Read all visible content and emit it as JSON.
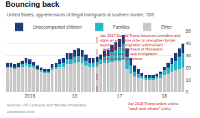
{
  "chart_data": {
    "type": "bar",
    "stacked": true,
    "title": "Bouncing back",
    "subtitle": "United States, apprehensions of illegal immigrants at southern border, ’000",
    "source": "Source: US Customs and Border Protection",
    "watermark": "economist.com",
    "categories": [
      null,
      null,
      null,
      null,
      null,
      null,
      "2015",
      null,
      null,
      null,
      null,
      null,
      null,
      null,
      null,
      null,
      null,
      null,
      "16",
      null,
      null,
      null,
      null,
      null,
      null,
      null,
      null,
      null,
      null,
      null,
      "17",
      null,
      null,
      null,
      null,
      null,
      null,
      null,
      null,
      null,
      null,
      null,
      "18",
      null,
      null,
      null,
      null,
      null
    ],
    "series": [
      {
        "name": "Other",
        "color": "#c8c8c8",
        "values": [
          20,
          20,
          19,
          20,
          21,
          22,
          21,
          20,
          18,
          17,
          16,
          16,
          18,
          19,
          21,
          21,
          23,
          23,
          24,
          25,
          24,
          22,
          21,
          21,
          22,
          23,
          24,
          24,
          25,
          26,
          26,
          27,
          19,
          15,
          13,
          12,
          11,
          10,
          10,
          10,
          11,
          12,
          14,
          15,
          17,
          18,
          19,
          20
        ]
      },
      {
        "name": "Families",
        "color": "#29b6c8",
        "values": [
          1,
          1,
          1,
          1,
          2,
          2,
          2,
          2,
          1,
          1,
          1,
          1,
          2,
          2,
          2,
          3,
          4,
          4,
          5,
          5,
          5,
          4,
          3,
          3,
          3,
          4,
          5,
          6,
          8,
          9,
          11,
          13,
          10,
          7,
          4,
          3,
          2,
          2,
          2,
          2,
          2,
          3,
          4,
          5,
          6,
          8,
          10,
          12
        ]
      },
      {
        "name": "Unaccompanied children",
        "color": "#1f3d7a",
        "values": [
          3,
          3,
          3,
          3,
          3,
          4,
          4,
          3,
          3,
          2,
          2,
          2,
          3,
          3,
          4,
          4,
          5,
          5,
          6,
          6,
          6,
          5,
          4,
          4,
          4,
          4,
          5,
          5,
          6,
          6,
          7,
          7,
          7,
          6,
          5,
          4,
          3,
          2,
          2,
          2,
          2,
          2,
          3,
          4,
          5,
          6,
          7,
          8
        ]
      }
    ],
    "ylim": [
      0,
      50
    ],
    "yticks": [
      0,
      10,
      20,
      30,
      40,
      50
    ],
    "grid": true,
    "legend": "top",
    "annotations": [
      {
        "text": "Jan 2017 Donald Trump becomes president and\nsigns an executive order to strengthen border\nsecurity and immigration enforcement",
        "x": 24
      },
      {
        "text": "Feb 2017 Department of Homeland\nSecurity issues new immigration\nenforcement guidelines",
        "x": 25
      },
      {
        "text": "Apr 2018 Trump orders end to\n“catch and release” policy",
        "x": 39
      }
    ]
  }
}
